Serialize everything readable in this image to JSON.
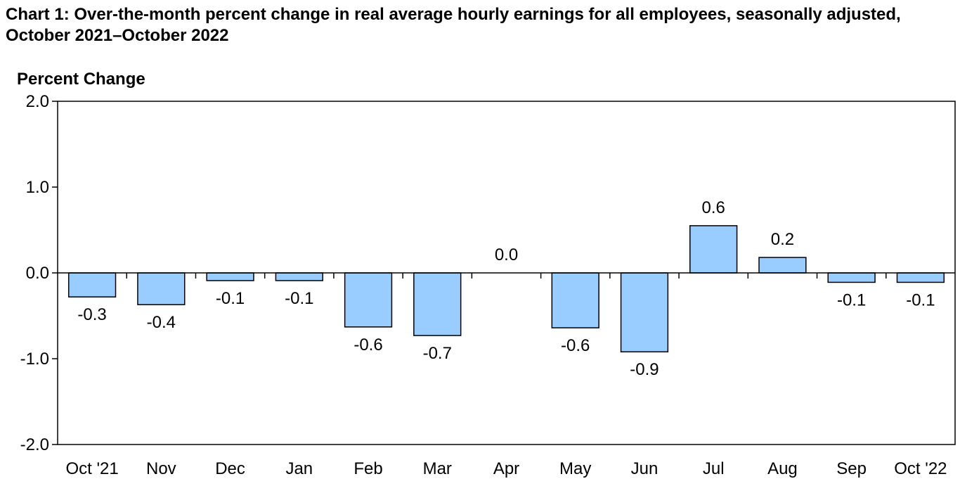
{
  "chart_data": {
    "type": "bar",
    "title": "Chart 1: Over-the-month percent change in real average hourly earnings for all employees, seasonally adjusted, October 2021–October 2022",
    "ylabel": "Percent Change",
    "xlabel": "",
    "categories": [
      "Oct '21",
      "Nov",
      "Dec",
      "Jan",
      "Feb",
      "Mar",
      "Apr",
      "May",
      "Jun",
      "Jul",
      "Aug",
      "Sep",
      "Oct '22"
    ],
    "values": [
      -0.28,
      -0.37,
      -0.09,
      -0.09,
      -0.63,
      -0.73,
      0.0,
      -0.64,
      -0.92,
      0.55,
      0.18,
      -0.11,
      -0.11
    ],
    "data_labels": [
      "-0.3",
      "-0.4",
      "-0.1",
      "-0.1",
      "-0.6",
      "-0.7",
      "0.0",
      "-0.6",
      "-0.9",
      "0.6",
      "0.2",
      "-0.1",
      "-0.1"
    ],
    "ylim": [
      -2.0,
      2.0
    ],
    "yticks": [
      2.0,
      1.0,
      0.0,
      -1.0,
      -2.0
    ],
    "ytick_labels": [
      "2.0",
      "1.0",
      "0.0",
      "-1.0",
      "-2.0"
    ],
    "grid": false,
    "legend": "none",
    "bar_color": "#99CCFF",
    "bar_edge_color": "#000000"
  }
}
